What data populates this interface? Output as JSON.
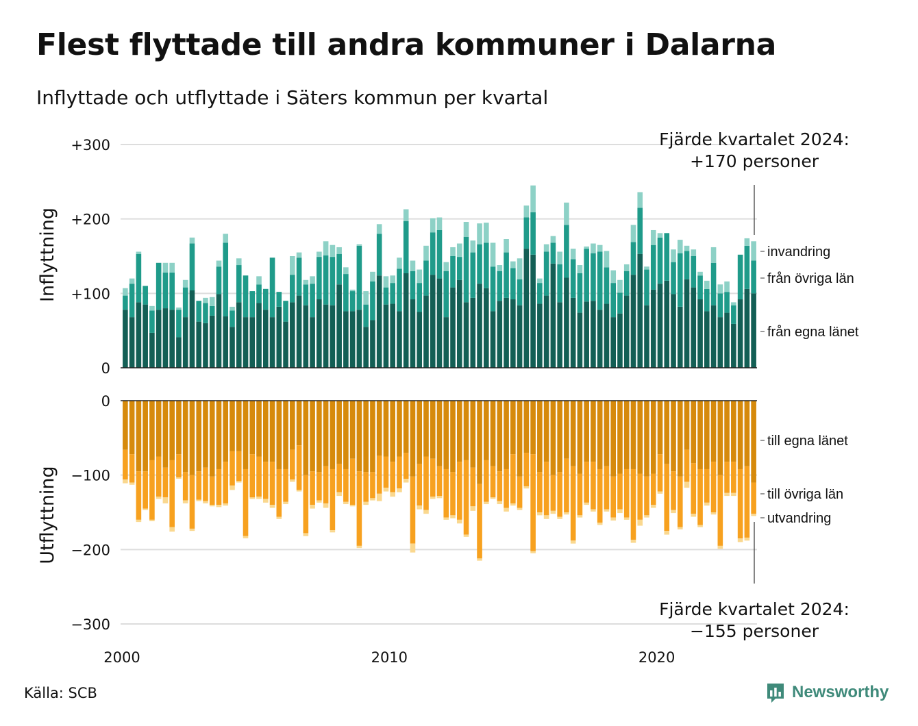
{
  "title": "Flest flyttade till andra kommuner i Dalarna",
  "subtitle": "Inflyttade och utflyttade i Säters kommun per kvartal",
  "source": "Källa: SCB",
  "brand": "Newsworthy",
  "colors": {
    "in_egna": "#135f55",
    "in_ovriga": "#1f9b8a",
    "in_invandring": "#8dd1c6",
    "out_egna": "#d68a0c",
    "out_ovriga": "#f7a11f",
    "out_utvandring": "#fad88f",
    "grid": "#dddddd",
    "brand": "#3f8a7a"
  },
  "chart_data": [
    {
      "type": "bar",
      "stacked": true,
      "panel": "Inflyttning",
      "ylabel": "Inflyttning",
      "ylim": [
        0,
        300
      ],
      "yticks": [
        0,
        100,
        200,
        300
      ],
      "ytick_labels": [
        "0",
        "+100",
        "+200",
        "+300"
      ],
      "grid": true,
      "annotation": "Fjärde kvartalet 2024:\n+170 personer",
      "x_start": "2000 Q1",
      "xticks": [
        2000,
        2010,
        2020
      ],
      "series": [
        {
          "name": "från egna länet",
          "values": [
            78,
            68,
            88,
            85,
            47,
            78,
            80,
            78,
            41,
            68,
            104,
            62,
            60,
            70,
            99,
            69,
            55,
            88,
            68,
            68,
            87,
            78,
            68,
            82,
            62,
            88,
            97,
            84,
            68,
            92,
            85,
            84,
            112,
            76,
            76,
            78,
            55,
            64,
            124,
            85,
            86,
            76,
            127,
            92,
            75,
            97,
            125,
            120,
            68,
            108,
            118,
            88,
            94,
            113,
            107,
            76,
            90,
            94,
            92,
            84,
            160,
            152,
            86,
            97,
            140,
            88,
            121,
            94,
            74,
            89,
            90,
            78,
            86,
            68,
            73,
            97,
            125,
            153,
            84,
            105,
            113,
            117,
            99,
            82,
            119,
            108,
            92,
            76,
            84,
            68,
            74,
            59,
            92,
            106,
            100
          ]
        },
        {
          "name": "från övriga län",
          "values": [
            19,
            45,
            65,
            25,
            30,
            63,
            48,
            50,
            37,
            40,
            63,
            28,
            27,
            13,
            37,
            99,
            22,
            50,
            56,
            35,
            25,
            28,
            80,
            20,
            28,
            37,
            51,
            28,
            45,
            57,
            66,
            65,
            41,
            50,
            27,
            86,
            30,
            52,
            56,
            23,
            28,
            57,
            70,
            38,
            39,
            47,
            57,
            65,
            62,
            42,
            31,
            88,
            61,
            53,
            61,
            60,
            40,
            61,
            42,
            35,
            42,
            57,
            28,
            59,
            28,
            51,
            71,
            52,
            53,
            71,
            64,
            78,
            49,
            46,
            28,
            33,
            44,
            62,
            48,
            60,
            62,
            64,
            43,
            72,
            38,
            42,
            32,
            30,
            57,
            32,
            28,
            25,
            60,
            58,
            44
          ]
        },
        {
          "name": "invandring",
          "values": [
            10,
            7,
            3,
            0,
            6,
            0,
            13,
            13,
            3,
            10,
            8,
            0,
            7,
            12,
            8,
            12,
            5,
            9,
            0,
            0,
            11,
            0,
            0,
            0,
            0,
            25,
            7,
            6,
            10,
            7,
            19,
            16,
            9,
            9,
            2,
            2,
            18,
            13,
            13,
            15,
            10,
            15,
            16,
            14,
            18,
            20,
            19,
            17,
            12,
            12,
            18,
            20,
            16,
            28,
            27,
            32,
            8,
            18,
            9,
            28,
            16,
            36,
            6,
            10,
            9,
            17,
            30,
            14,
            11,
            3,
            13,
            9,
            22,
            17,
            17,
            9,
            23,
            21,
            4,
            20,
            6,
            0,
            17,
            18,
            7,
            9,
            5,
            11,
            21,
            12,
            14,
            4,
            0,
            10,
            26
          ]
        }
      ]
    },
    {
      "type": "bar",
      "stacked": true,
      "panel": "Utflyttning",
      "ylabel": "Utflyttning",
      "ylim": [
        -300,
        0
      ],
      "yticks": [
        0,
        -100,
        -200,
        -300
      ],
      "ytick_labels": [
        "0",
        "−100",
        "−200",
        "−300"
      ],
      "grid": true,
      "annotation": "Fjärde kvartalet 2024:\n−155 personer",
      "series": [
        {
          "name": "till egna länet",
          "values": [
            -66,
            -72,
            -95,
            -95,
            -80,
            -75,
            -90,
            -80,
            -72,
            -96,
            -100,
            -95,
            -90,
            -102,
            -92,
            -82,
            -68,
            -68,
            -92,
            -72,
            -75,
            -82,
            -82,
            -92,
            -92,
            -66,
            -60,
            -100,
            -95,
            -96,
            -88,
            -92,
            -85,
            -92,
            -78,
            -95,
            -96,
            -96,
            -74,
            -75,
            -82,
            -75,
            -70,
            -102,
            -85,
            -75,
            -78,
            -88,
            -92,
            -96,
            -82,
            -80,
            -90,
            -112,
            -80,
            -88,
            -95,
            -92,
            -72,
            -102,
            -70,
            -72,
            -96,
            -82,
            -100,
            -96,
            -78,
            -88,
            -98,
            -82,
            -82,
            -92,
            -88,
            -102,
            -98,
            -92,
            -92,
            -98,
            -102,
            -98,
            -72,
            -85,
            -95,
            -102,
            -66,
            -84,
            -92,
            -92,
            -82,
            -100,
            -82,
            -82,
            -92,
            -88,
            -110
          ]
        },
        {
          "name": "till övriga län",
          "values": [
            -40,
            -38,
            -65,
            -50,
            -80,
            -54,
            -40,
            -90,
            -31,
            -38,
            -72,
            -38,
            -45,
            -38,
            -48,
            -56,
            -46,
            -40,
            -90,
            -58,
            -54,
            -50,
            -58,
            -64,
            -44,
            -40,
            -60,
            -78,
            -45,
            -38,
            -50,
            -82,
            -38,
            -44,
            -62,
            -100,
            -40,
            -35,
            -51,
            -42,
            -41,
            -43,
            -35,
            -90,
            -56,
            -72,
            -51,
            -40,
            -65,
            -58,
            -78,
            -100,
            -52,
            -100,
            -56,
            -42,
            -40,
            -52,
            -66,
            -42,
            -45,
            -130,
            -54,
            -72,
            -48,
            -60,
            -72,
            -100,
            -56,
            -55,
            -64,
            -72,
            -58,
            -55,
            -48,
            -65,
            -95,
            -62,
            -52,
            -42,
            -50,
            -90,
            -52,
            -68,
            -43,
            -68,
            -75,
            -45,
            -68,
            -95,
            -42,
            -42,
            -93,
            -96,
            -42
          ]
        },
        {
          "name": "utvandring",
          "values": [
            -5,
            -3,
            -3,
            -2,
            -2,
            -3,
            -8,
            -6,
            -2,
            -4,
            -3,
            -2,
            -3,
            -2,
            -3,
            -3,
            -6,
            -2,
            -3,
            -2,
            -3,
            -5,
            -4,
            -3,
            -3,
            -3,
            -2,
            -4,
            -5,
            -3,
            -6,
            -3,
            -5,
            -3,
            -2,
            -3,
            -4,
            -3,
            -10,
            -5,
            -6,
            -5,
            -5,
            -12,
            -5,
            -5,
            -3,
            -3,
            -3,
            -4,
            -5,
            -3,
            -6,
            -3,
            -3,
            -2,
            -4,
            -5,
            -3,
            -3,
            -3,
            -3,
            -4,
            -5,
            -4,
            -3,
            -3,
            -4,
            -3,
            -3,
            -3,
            -3,
            -3,
            -4,
            -5,
            -3,
            -4,
            -8,
            -3,
            -4,
            -3,
            -5,
            -4,
            -3,
            -8,
            -4,
            -3,
            -4,
            -3,
            -4,
            -4,
            -4,
            -5,
            -4,
            -3
          ]
        }
      ]
    }
  ]
}
